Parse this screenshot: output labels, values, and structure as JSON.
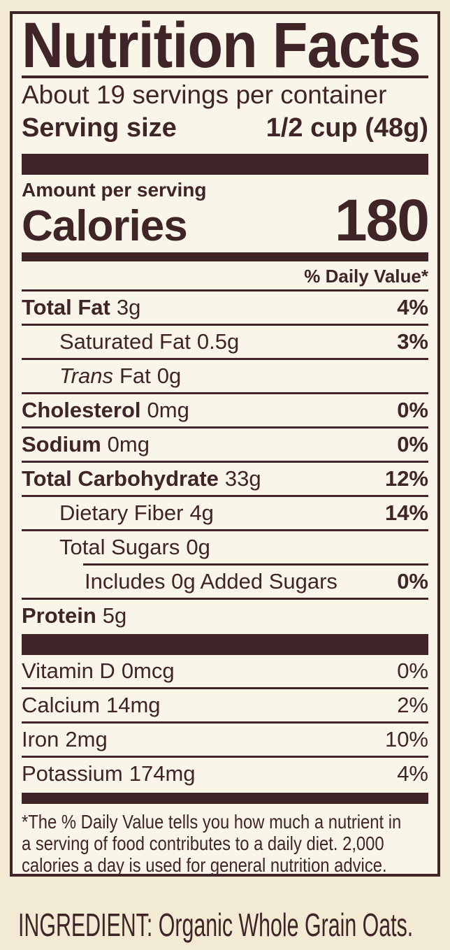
{
  "colors": {
    "ink": "#3F2428",
    "label_background": "#F9F5E9",
    "page_background": "#F2EAD3"
  },
  "header": {
    "title": "Nutrition Facts",
    "servings_per_container": "About 19 servings per container",
    "serving_size_label": "Serving size",
    "serving_size_value": "1/2 cup (48g)"
  },
  "calories_section": {
    "amount_per_serving": "Amount per serving",
    "calories_label": "Calories",
    "calories_value": "180"
  },
  "daily_value_header": "% Daily Value*",
  "nutrients": [
    {
      "name": "Total Fat",
      "amount": "3g",
      "dv": "4%"
    },
    {
      "name": "Saturated Fat",
      "amount": "0.5g",
      "dv": "3%"
    },
    {
      "name_italic": "Trans",
      "name": "Fat",
      "amount": "0g",
      "dv": ""
    },
    {
      "name": "Cholesterol",
      "amount": "0mg",
      "dv": "0%"
    },
    {
      "name": "Sodium",
      "amount": "0mg",
      "dv": "0%"
    },
    {
      "name": "Total Carbohydrate",
      "amount": "33g",
      "dv": "12%"
    },
    {
      "name": "Dietary Fiber",
      "amount": "4g",
      "dv": "14%"
    },
    {
      "name": "Total Sugars",
      "amount": "0g",
      "dv": ""
    },
    {
      "name": "Includes 0g Added Sugars",
      "amount": "",
      "dv": "0%"
    },
    {
      "name": "Protein",
      "amount": "5g",
      "dv": ""
    }
  ],
  "micronutrients": [
    {
      "name": "Vitamin D",
      "amount": "0mcg",
      "dv": "0%"
    },
    {
      "name": "Calcium",
      "amount": "14mg",
      "dv": "2%"
    },
    {
      "name": "Iron",
      "amount": "2mg",
      "dv": "10%"
    },
    {
      "name": "Potassium",
      "amount": "174mg",
      "dv": "4%"
    }
  ],
  "footnote_lines": [
    "*The % Daily Value tells you how much a nutrient in",
    "a serving of food contributes to a daily diet. 2,000",
    "calories a day is used for general nutrition advice."
  ],
  "ingredient": "INGREDIENT: Organic Whole Grain Oats."
}
